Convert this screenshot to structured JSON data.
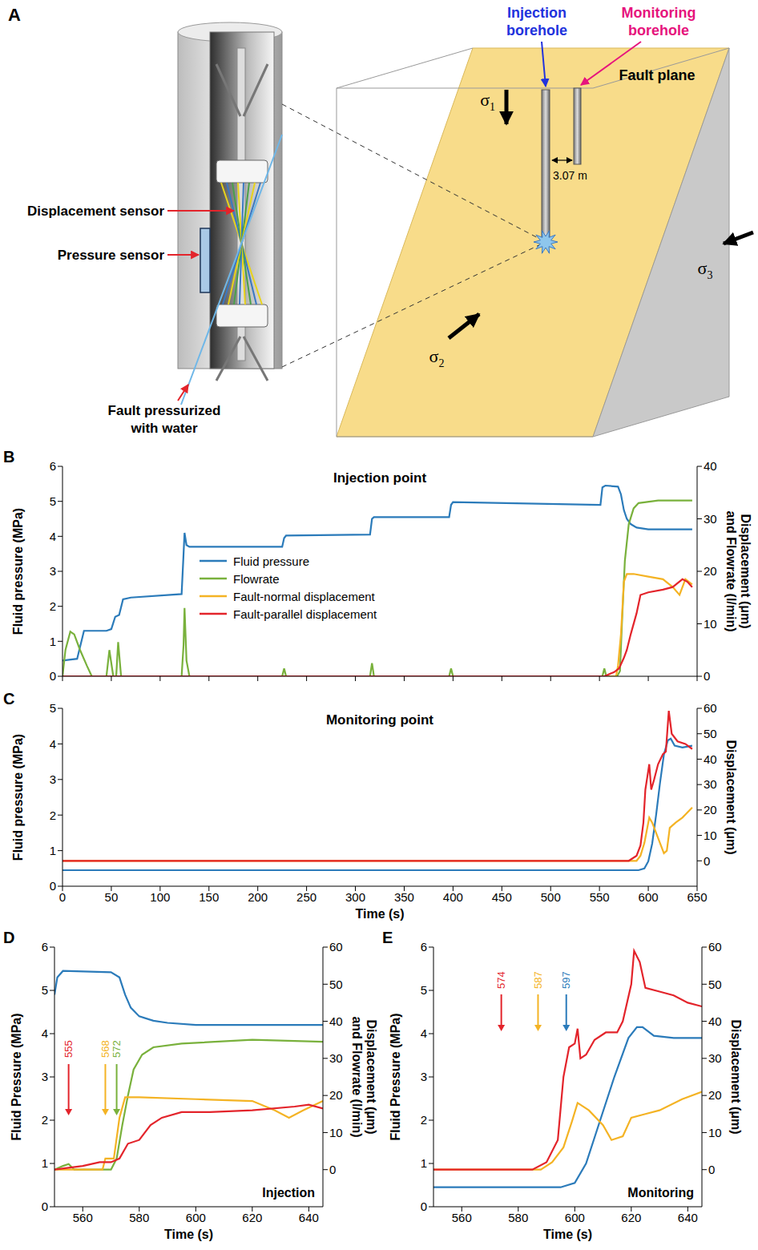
{
  "diagram": {
    "panel": "A",
    "displacement_sensor": "Displacement sensor",
    "pressure_sensor": "Pressure sensor",
    "fault_label": "Fault pressurized with water",
    "injection_borehole": "Injection borehole",
    "monitoring_borehole": "Monitoring borehole",
    "fault_plane": "Fault plane",
    "spacing": "3.07 m",
    "sigma1": "σ1",
    "sigma2": "σ2",
    "sigma3": "σ3"
  },
  "chart_data": [
    {
      "panel": "B",
      "type": "line",
      "title": "Injection point",
      "y_label": "Fluid pressure (MPa)",
      "y2_label": "Displacement (μm) and Flowrate (l/min)",
      "xlim": [
        0,
        650
      ],
      "xticks": [
        0,
        50,
        100,
        150,
        200,
        250,
        300,
        350,
        400,
        450,
        500,
        550,
        600,
        650
      ],
      "ylim": [
        0,
        6
      ],
      "yticks": [
        0,
        1,
        2,
        3,
        4,
        5,
        6
      ],
      "y2lim": [
        0,
        40
      ],
      "y2ticks": [
        0,
        10,
        20,
        30,
        40
      ],
      "tick_labels": "y",
      "legend": "center",
      "series": [
        {
          "name": "Fluid pressure",
          "color": "#2b7bba",
          "x": [
            0,
            15,
            22,
            45,
            50,
            54,
            58,
            62,
            70,
            122,
            124,
            125,
            127,
            130,
            225,
            227,
            229,
            315,
            317,
            319,
            396,
            398,
            400,
            551,
            553,
            556,
            569,
            572,
            575,
            578,
            582,
            588,
            600,
            645
          ],
          "values": [
            0.45,
            0.5,
            1.3,
            1.3,
            1.35,
            1.7,
            1.75,
            2.2,
            2.25,
            2.35,
            3.5,
            4.1,
            3.75,
            3.7,
            3.7,
            3.95,
            4.02,
            4.05,
            4.5,
            4.55,
            4.55,
            4.9,
            4.98,
            4.9,
            5.4,
            5.45,
            5.42,
            5.2,
            4.75,
            4.5,
            4.35,
            4.25,
            4.2,
            4.2
          ]
        },
        {
          "name": "Flowrate",
          "color": "#79b13c",
          "axis": "y2",
          "x": [
            0,
            3,
            8,
            12,
            18,
            25,
            30,
            45,
            48,
            52,
            55,
            57,
            60,
            63,
            122,
            124,
            125,
            127,
            130,
            225,
            227,
            229,
            315,
            317,
            319,
            396,
            398,
            400,
            553,
            555,
            557,
            568,
            571,
            573,
            576,
            580,
            585,
            590,
            610,
            645
          ],
          "values": [
            0,
            5,
            8.5,
            8,
            5,
            2,
            0,
            0,
            5,
            0,
            0,
            6.5,
            0,
            0,
            0,
            6,
            13,
            3,
            0,
            0,
            1.5,
            0,
            0,
            2.5,
            0,
            0,
            1.5,
            0,
            0,
            1.5,
            0,
            0,
            1,
            10,
            22,
            29,
            32,
            33,
            33.5,
            33.5
          ]
        },
        {
          "name": "Fault-normal displacement",
          "color": "#f4b324",
          "axis": "y2",
          "x": [
            0,
            567,
            569,
            572,
            575,
            578,
            585,
            600,
            615,
            625,
            632,
            638,
            645
          ],
          "values": [
            0,
            0,
            2,
            8,
            18,
            19.5,
            19.5,
            19,
            18.5,
            17,
            15.5,
            18.5,
            17.5
          ]
        },
        {
          "name": "Fault-parallel displacement",
          "color": "#e3242b",
          "axis": "y2",
          "x": [
            0,
            555,
            565,
            570,
            575,
            578,
            582,
            588,
            592,
            600,
            615,
            625,
            635,
            640,
            645
          ],
          "values": [
            0,
            0,
            0.8,
            1.5,
            3.5,
            5,
            8,
            12,
            15.5,
            16,
            16.5,
            17,
            18.5,
            18,
            17
          ]
        }
      ]
    },
    {
      "panel": "C",
      "type": "line",
      "title": "Monitoring point",
      "x_label": "Time (s)",
      "y_label": "Fluid pressure (MPa)",
      "y2_label": "Displacement (μm)",
      "xlim": [
        0,
        650
      ],
      "xticks": [
        0,
        50,
        100,
        150,
        200,
        250,
        300,
        350,
        400,
        450,
        500,
        550,
        600,
        650
      ],
      "ylim": [
        0,
        5
      ],
      "yticks": [
        0,
        1,
        2,
        3,
        4,
        5
      ],
      "y2lim": [
        -10,
        60
      ],
      "y2ticks": [
        0,
        10,
        20,
        30,
        40,
        50,
        60
      ],
      "series": [
        {
          "color": "#2b7bba",
          "x": [
            0,
            590,
            596,
            600,
            604,
            608,
            612,
            616,
            620,
            623,
            627,
            635,
            645
          ],
          "values": [
            0.45,
            0.45,
            0.5,
            0.7,
            1.2,
            2,
            2.9,
            3.7,
            4.1,
            4.15,
            3.95,
            3.9,
            3.95
          ]
        },
        {
          "color": "#f4b324",
          "axis": "y2",
          "x": [
            0,
            588,
            592,
            596,
            599,
            601,
            604,
            608,
            612,
            616,
            619,
            622,
            628,
            635,
            645
          ],
          "values": [
            0,
            0,
            2,
            7,
            13,
            17,
            15,
            11,
            7,
            3,
            4,
            13,
            15,
            17,
            21
          ]
        },
        {
          "color": "#e3242b",
          "axis": "y2",
          "x": [
            0,
            580,
            588,
            592,
            595,
            597,
            599,
            601,
            603,
            606,
            610,
            615,
            618,
            621,
            624,
            630,
            638,
            645
          ],
          "values": [
            0,
            0,
            2,
            6,
            15,
            28,
            33,
            38,
            28,
            32,
            38,
            42,
            43,
            59,
            50,
            47,
            46,
            44
          ]
        }
      ]
    },
    {
      "panel": "D",
      "type": "line",
      "inset_label": "Injection",
      "x_label": "Time (s)",
      "y_label": "Fluid Pressure (MPa)",
      "y2_label": "Displacement (μm) and Flowrate (l/min)",
      "xlim": [
        550,
        645
      ],
      "xticks": [
        560,
        580,
        600,
        620,
        640
      ],
      "ylim": [
        0,
        6
      ],
      "yticks": [
        0,
        1,
        2,
        3,
        4,
        5,
        6
      ],
      "y2lim": [
        -10,
        60
      ],
      "y2ticks": [
        0,
        10,
        20,
        30,
        40,
        50,
        60
      ],
      "annotations": [
        {
          "x": 555,
          "color": "#e3242b"
        },
        {
          "x": 568,
          "color": "#f4b324"
        },
        {
          "x": 572,
          "color": "#79b13c"
        }
      ],
      "series": [
        {
          "color": "#2b7bba",
          "x": [
            550,
            551,
            553,
            570,
            573,
            575,
            577,
            580,
            585,
            590,
            600,
            645
          ],
          "values": [
            4.9,
            5.3,
            5.45,
            5.42,
            5.3,
            4.9,
            4.6,
            4.4,
            4.3,
            4.25,
            4.2,
            4.2
          ]
        },
        {
          "color": "#79b13c",
          "axis": "y2",
          "x": [
            550,
            553,
            555,
            557,
            570,
            572,
            574,
            576,
            578,
            581,
            585,
            595,
            620,
            645
          ],
          "values": [
            0,
            1,
            1.5,
            0,
            0,
            3,
            12,
            20,
            27,
            31,
            33,
            34,
            35,
            34.5
          ]
        },
        {
          "color": "#f4b324",
          "axis": "y2",
          "x": [
            550,
            567,
            568,
            571,
            573,
            575,
            580,
            600,
            620,
            628,
            633,
            638,
            645
          ],
          "values": [
            0,
            0,
            3,
            3,
            14,
            19.5,
            19.5,
            19,
            18.5,
            16,
            14,
            16,
            18.5
          ]
        },
        {
          "color": "#e3242b",
          "axis": "y2",
          "x": [
            550,
            555,
            560,
            566,
            570,
            573,
            576,
            580,
            584,
            588,
            595,
            605,
            620,
            635,
            640,
            645
          ],
          "values": [
            0,
            0.5,
            1,
            2,
            2,
            3,
            7,
            8,
            12,
            14,
            15.5,
            15.5,
            16,
            17,
            17.5,
            16.5
          ]
        }
      ]
    },
    {
      "panel": "E",
      "type": "line",
      "inset_label": "Monitoring",
      "x_label": "Time (s)",
      "y_label": "Fluid Pressure (MPa)",
      "y2_label": "Displacement (μm)",
      "xlim": [
        550,
        645
      ],
      "xticks": [
        560,
        580,
        600,
        620,
        640
      ],
      "ylim": [
        0,
        6
      ],
      "yticks": [
        0,
        1,
        2,
        3,
        4,
        5,
        6
      ],
      "y2lim": [
        -10,
        60
      ],
      "y2ticks": [
        0,
        10,
        20,
        30,
        40,
        50,
        60
      ],
      "annotations": [
        {
          "x": 574,
          "color": "#e3242b"
        },
        {
          "x": 587,
          "color": "#f4b324"
        },
        {
          "x": 597,
          "color": "#2b7bba"
        }
      ],
      "series": [
        {
          "color": "#2b7bba",
          "x": [
            550,
            595,
            600,
            604,
            609,
            614,
            619,
            622,
            624,
            628,
            635,
            645
          ],
          "values": [
            0.45,
            0.45,
            0.55,
            1,
            2,
            3,
            3.9,
            4.15,
            4.15,
            3.95,
            3.9,
            3.9
          ]
        },
        {
          "color": "#f4b324",
          "axis": "y2",
          "x": [
            550,
            588,
            592,
            596,
            599,
            601,
            605,
            610,
            613,
            617,
            620,
            625,
            630,
            638,
            645
          ],
          "values": [
            0,
            0,
            2,
            6,
            13,
            18,
            16,
            12,
            8,
            9,
            14,
            15,
            16,
            19,
            21
          ]
        },
        {
          "color": "#e3242b",
          "axis": "y2",
          "x": [
            550,
            585,
            590,
            594,
            596,
            598,
            600,
            601,
            602,
            604,
            607,
            611,
            615,
            617,
            620,
            621,
            623,
            625,
            630,
            635,
            640,
            645
          ],
          "values": [
            0,
            0,
            2,
            8,
            25,
            33,
            34,
            38,
            30,
            31,
            35,
            37,
            37,
            40,
            50,
            59,
            56,
            49,
            48,
            47,
            45,
            44
          ]
        }
      ]
    }
  ]
}
